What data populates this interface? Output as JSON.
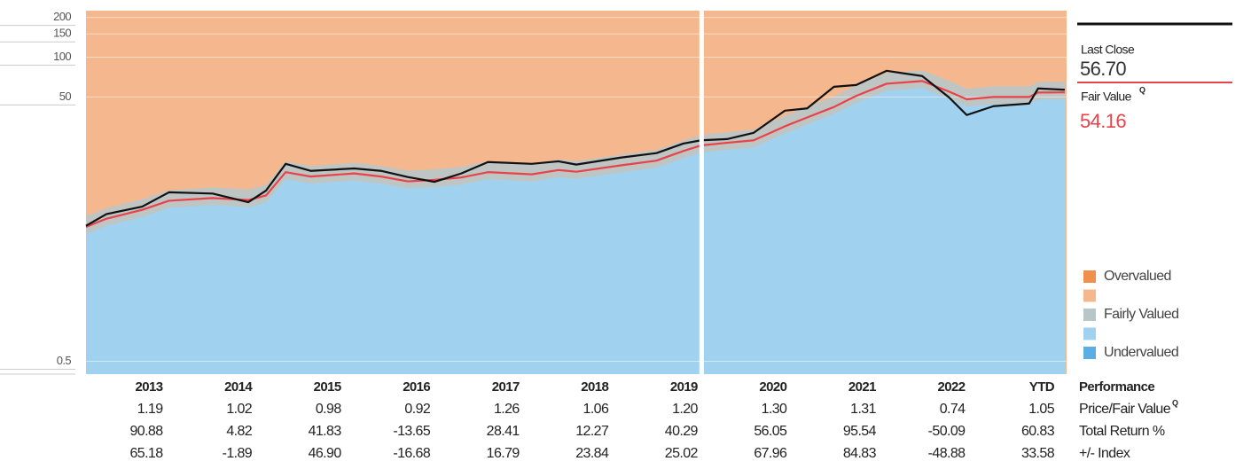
{
  "chart_data": {
    "type": "line",
    "log_scale": true,
    "ylim": [
      0.4,
      225
    ],
    "yticks": [
      0.5,
      50,
      100,
      150,
      200
    ],
    "xlim": [
      2013,
      2024
    ],
    "x": [
      2013.0,
      2013.23,
      2013.63,
      2013.93,
      2014.42,
      2014.82,
      2015.02,
      2015.24,
      2015.52,
      2016.01,
      2016.31,
      2016.61,
      2016.91,
      2017.21,
      2017.51,
      2018.0,
      2018.3,
      2018.5,
      2019.0,
      2019.4,
      2019.7,
      2019.9,
      2020.19,
      2020.49,
      2020.84,
      2021.09,
      2021.39,
      2021.64,
      2021.98,
      2022.38,
      2022.68,
      2022.88,
      2023.18,
      2023.58,
      2023.68,
      2023.98
    ],
    "series": [
      {
        "name": "Last Close",
        "color": "#111111",
        "values": [
          5.3,
          6.5,
          7.4,
          9.5,
          9.3,
          8.0,
          9.8,
          15.6,
          13.8,
          14.4,
          13.8,
          12.4,
          11.4,
          13.2,
          16.1,
          15.6,
          16.3,
          15.4,
          17.4,
          18.8,
          22.2,
          23.5,
          24,
          26.8,
          39.4,
          41,
          59.7,
          61.6,
          78.9,
          72,
          49.7,
          36.5,
          42.6,
          44.6,
          58,
          56.7
        ]
      },
      {
        "name": "Fair Value",
        "color": "#e8434b",
        "values": [
          5.2,
          6.0,
          7.0,
          8.2,
          8.6,
          8.3,
          9.0,
          13.5,
          12.5,
          13.2,
          12.5,
          11.5,
          11.8,
          12.3,
          13.5,
          13.0,
          14.0,
          13.6,
          15.2,
          16.5,
          19.5,
          21.5,
          22.5,
          23.5,
          30,
          35,
          42,
          51,
          63,
          66,
          55,
          48,
          50,
          50,
          54,
          54.16
        ]
      }
    ],
    "bands": [
      {
        "name": "Overvalued",
        "color": "#f0904d"
      },
      {
        "color": "#f5b88e"
      },
      {
        "name": "Fairly Valued",
        "color": "#b9c6c8"
      },
      {
        "color": "#a0d2ef"
      },
      {
        "name": "Undervalued",
        "color": "#5aaee3"
      }
    ],
    "last_close_label": "Last Close",
    "last_close": "56.70",
    "fair_value_label": "Fair Value",
    "fair_value_mark": "Q",
    "fair_value": "54.16"
  },
  "table": {
    "header": "Performance",
    "columns": [
      "2013",
      "2014",
      "2015",
      "2016",
      "2017",
      "2018",
      "2019",
      "2020",
      "2021",
      "2022",
      "YTD"
    ],
    "rows": [
      {
        "label": "Price/Fair Value",
        "mark": "Q",
        "values": [
          "1.19",
          "1.02",
          "0.98",
          "0.92",
          "1.26",
          "1.06",
          "1.20",
          "1.30",
          "1.31",
          "0.74",
          "1.05"
        ]
      },
      {
        "label": "Total Return %",
        "values": [
          "90.88",
          "4.82",
          "41.83",
          "-13.65",
          "28.41",
          "12.27",
          "40.29",
          "56.05",
          "95.54",
          "-50.09",
          "60.83"
        ]
      },
      {
        "label": "+/- Index",
        "values": [
          "65.18",
          "-1.89",
          "46.90",
          "-16.68",
          "16.79",
          "23.84",
          "25.02",
          "67.96",
          "84.83",
          "-48.88",
          "33.58"
        ]
      }
    ]
  }
}
